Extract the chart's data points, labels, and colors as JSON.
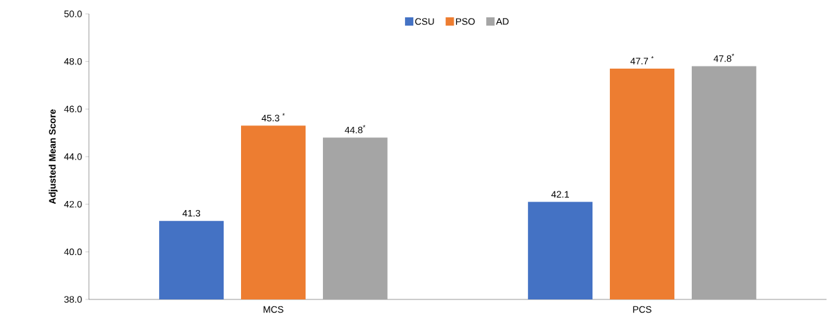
{
  "chart_data": {
    "type": "bar",
    "ylabel": "Adjusted Mean Score",
    "categories": [
      "MCS",
      "PCS"
    ],
    "series": [
      {
        "name": "CSU",
        "color": "#4472c4",
        "values": [
          41.3,
          42.1
        ],
        "value_labels": [
          "41.3",
          "42.1"
        ]
      },
      {
        "name": "PSO",
        "color": "#ed7d31",
        "values": [
          45.3,
          47.7
        ],
        "value_labels": [
          "45.3 $^{*}$",
          "47.7 $^{*}$"
        ]
      },
      {
        "name": "AD",
        "color": "#a5a5a5",
        "values": [
          44.8,
          47.8
        ],
        "value_labels": [
          "44.8$^{*}$",
          "47.8$^{*}$"
        ]
      }
    ],
    "ylim": [
      38,
      50
    ],
    "yticks": [
      {
        "value": 38,
        "label": "38.0"
      },
      {
        "value": 40,
        "label": "40.0"
      },
      {
        "value": 42,
        "label": "42.0"
      },
      {
        "value": 44,
        "label": "44.0"
      },
      {
        "value": 46,
        "label": "46.0"
      },
      {
        "value": 48,
        "label": "48.0"
      },
      {
        "value": 50,
        "label": "50.0"
      }
    ],
    "legend": "top",
    "grid": false
  }
}
